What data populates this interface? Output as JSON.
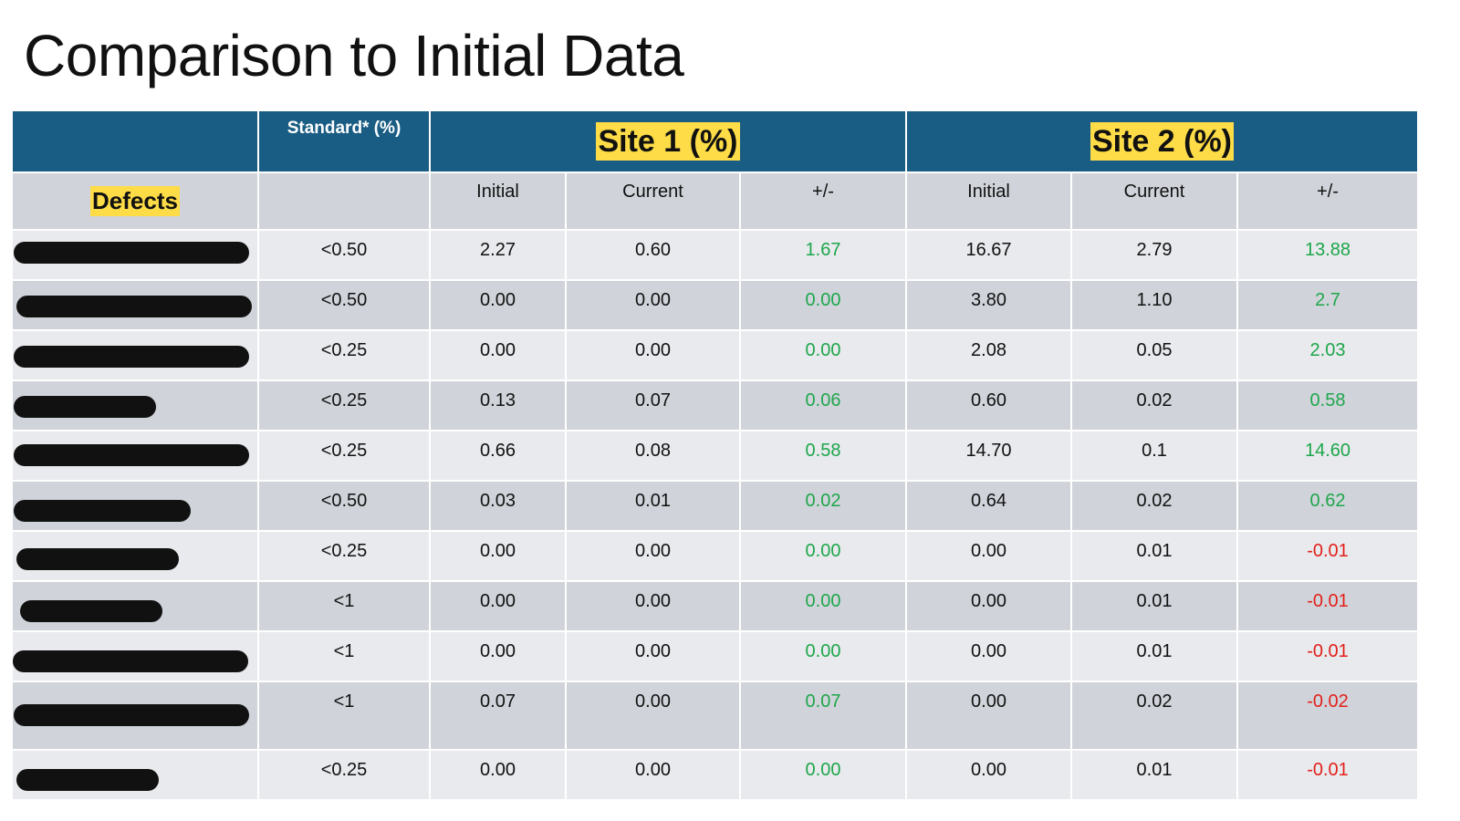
{
  "title": "Comparison to Initial Data",
  "table": {
    "header": {
      "standard_label": "Standard* (%)",
      "site1_label": "Site 1 (%)",
      "site2_label": "Site 2 (%)",
      "defects_label": "Defects",
      "subcolumns": [
        "Initial",
        "Current",
        "+/-",
        "Initial",
        "Current",
        "+/-"
      ]
    },
    "rows": [
      {
        "standard": "<0.50",
        "s1_initial": "2.27",
        "s1_current": "0.60",
        "s1_diff": "1.67",
        "s2_initial": "16.67",
        "s2_current": "2.79",
        "s2_diff": "13.88"
      },
      {
        "standard": "<0.50",
        "s1_initial": "0.00",
        "s1_current": "0.00",
        "s1_diff": "0.00",
        "s2_initial": "3.80",
        "s2_current": "1.10",
        "s2_diff": "2.7"
      },
      {
        "standard": "<0.25",
        "s1_initial": "0.00",
        "s1_current": "0.00",
        "s1_diff": "0.00",
        "s2_initial": "2.08",
        "s2_current": "0.05",
        "s2_diff": "2.03"
      },
      {
        "standard": "<0.25",
        "s1_initial": "0.13",
        "s1_current": "0.07",
        "s1_diff": "0.06",
        "s2_initial": "0.60",
        "s2_current": "0.02",
        "s2_diff": "0.58"
      },
      {
        "standard": "<0.25",
        "s1_initial": "0.66",
        "s1_current": "0.08",
        "s1_diff": "0.58",
        "s2_initial": "14.70",
        "s2_current": "0.1",
        "s2_diff": "14.60"
      },
      {
        "standard": "<0.50",
        "s1_initial": "0.03",
        "s1_current": "0.01",
        "s1_diff": "0.02",
        "s2_initial": "0.64",
        "s2_current": "0.02",
        "s2_diff": "0.62"
      },
      {
        "standard": "<0.25",
        "s1_initial": "0.00",
        "s1_current": "0.00",
        "s1_diff": "0.00",
        "s2_initial": "0.00",
        "s2_current": "0.01",
        "s2_diff": "-0.01"
      },
      {
        "standard": "<1",
        "s1_initial": "0.00",
        "s1_current": "0.00",
        "s1_diff": "0.00",
        "s2_initial": "0.00",
        "s2_current": "0.01",
        "s2_diff": "-0.01"
      },
      {
        "standard": "<1",
        "s1_initial": "0.00",
        "s1_current": "0.00",
        "s1_diff": "0.00",
        "s2_initial": "0.00",
        "s2_current": "0.01",
        "s2_diff": "-0.01"
      },
      {
        "standard": "<1",
        "s1_initial": "0.07",
        "s1_current": "0.00",
        "s1_diff": "0.07",
        "s2_initial": "0.00",
        "s2_current": "0.02",
        "s2_diff": "-0.02"
      },
      {
        "standard": "<0.25",
        "s1_initial": "0.00",
        "s1_current": "0.00",
        "s1_diff": "0.00",
        "s2_initial": "0.00",
        "s2_current": "0.01",
        "s2_diff": "-0.01"
      }
    ]
  },
  "colors": {
    "header_bg": "#1a5d84",
    "highlight": "#fddc47",
    "row_light": "#e8eaed",
    "row_dark": "#d0d4da",
    "positive": "#1ea64b",
    "negative": "#e3201b"
  }
}
